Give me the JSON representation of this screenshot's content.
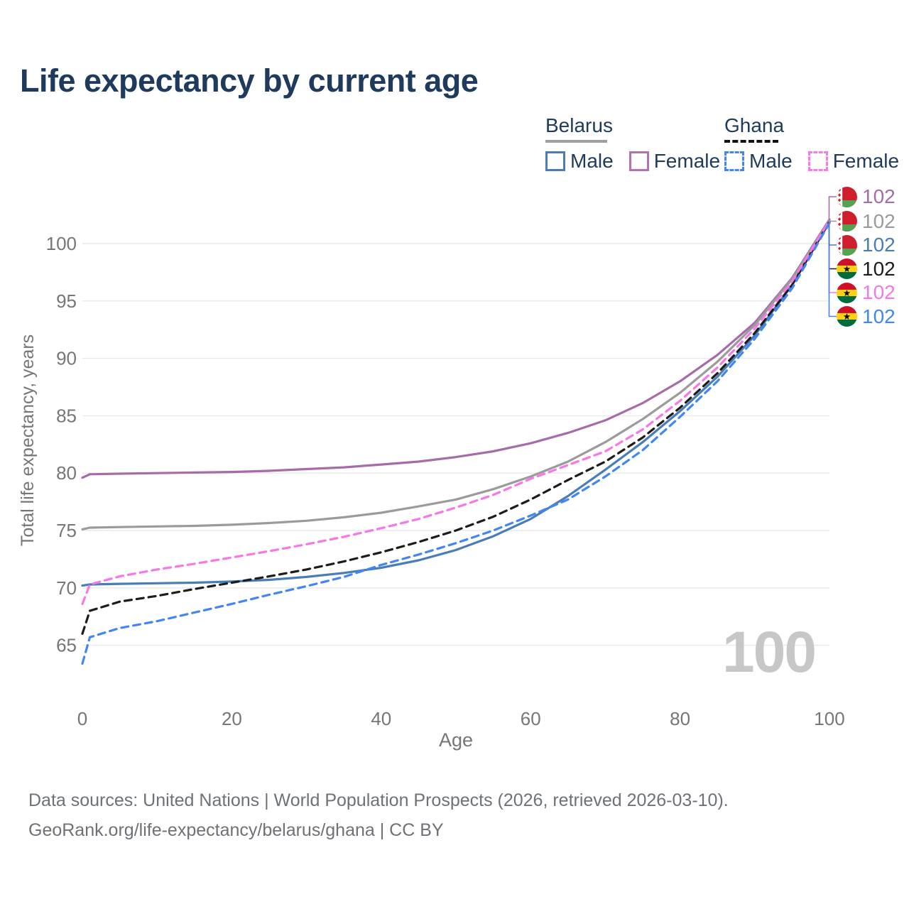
{
  "header": {
    "title": "Life expectancy by current age"
  },
  "legend": {
    "belarus": {
      "name": "Belarus",
      "male": "Male",
      "female": "Female"
    },
    "ghana": {
      "name": "Ghana",
      "male": "Male",
      "female": "Female"
    }
  },
  "axes": {
    "x_label": "Age",
    "y_label": "Total life expectancy, years"
  },
  "watermark": "100",
  "footer": {
    "line1": "Data sources: United Nations | World Population Prospects (2026, retrieved 2026-03-10).",
    "line2": "GeoRank.org/life-expectancy/belarus/ghana | CC BY"
  },
  "colors": {
    "title_text": "#1e3a5c",
    "axis_text": "#767676",
    "gridline": "#eaeaea",
    "watermark": "#c7c7c7",
    "belarus_female": "#a76ba9",
    "belarus_total": "#9b9b9b",
    "belarus_male": "#4a7db8",
    "ghana_total": "#1c1c1c",
    "ghana_female": "#f678e8",
    "ghana_male": "#4286f5"
  },
  "chart_data": {
    "type": "line",
    "title": "Life expectancy by current age",
    "xlabel": "Age",
    "ylabel": "Total life expectancy, years",
    "xlim": [
      0,
      100
    ],
    "ylim": [
      65,
      100
    ],
    "xticks": [
      0,
      20,
      40,
      60,
      80,
      100
    ],
    "yticks": [
      65,
      70,
      75,
      80,
      85,
      90,
      95,
      100
    ],
    "grid": "horizontal",
    "legend_position": "top-right",
    "watermark": "100",
    "x": [
      0,
      1,
      5,
      10,
      15,
      20,
      25,
      30,
      35,
      40,
      45,
      50,
      55,
      60,
      65,
      70,
      75,
      80,
      85,
      90,
      95,
      100
    ],
    "series": [
      {
        "name": "Belarus Female",
        "country": "belarus",
        "sex": "Female",
        "style": "solid",
        "color": "#a76ba9",
        "end_label": "102",
        "flag": "belarus-flag-icon",
        "values": [
          79.6,
          79.9,
          79.95,
          80.0,
          80.05,
          80.1,
          80.2,
          80.35,
          80.5,
          80.75,
          81.0,
          81.4,
          81.9,
          82.6,
          83.5,
          84.6,
          86.1,
          88.0,
          90.3,
          93.1,
          97.0,
          102.1
        ]
      },
      {
        "name": "Belarus",
        "country": "belarus",
        "sex": "Both",
        "style": "solid",
        "color": "#9b9b9b",
        "end_label": "102",
        "flag": "belarus-flag-icon",
        "values": [
          75.1,
          75.25,
          75.3,
          75.35,
          75.4,
          75.5,
          75.65,
          75.85,
          76.15,
          76.55,
          77.1,
          77.7,
          78.6,
          79.7,
          81.0,
          82.7,
          84.7,
          87.0,
          89.7,
          92.9,
          96.9,
          102.0
        ]
      },
      {
        "name": "Belarus Male",
        "country": "belarus",
        "sex": "Male",
        "style": "solid",
        "color": "#4a7db8",
        "end_label": "102",
        "flag": "belarus-flag-icon",
        "values": [
          70.2,
          70.3,
          70.35,
          70.4,
          70.45,
          70.55,
          70.7,
          70.95,
          71.3,
          71.75,
          72.4,
          73.3,
          74.5,
          76.0,
          78.0,
          80.3,
          82.7,
          85.4,
          88.4,
          92.0,
          96.4,
          101.9
        ]
      },
      {
        "name": "Ghana",
        "country": "ghana",
        "sex": "Both",
        "style": "dashed",
        "color": "#1c1c1c",
        "end_label": "102",
        "flag": "ghana-flag-icon",
        "values": [
          66.0,
          68.0,
          68.8,
          69.3,
          69.9,
          70.45,
          71.0,
          71.6,
          72.3,
          73.1,
          74.0,
          75.0,
          76.2,
          77.7,
          79.4,
          81.0,
          83.1,
          85.7,
          88.7,
          92.2,
          96.4,
          101.9
        ]
      },
      {
        "name": "Ghana Female",
        "country": "ghana",
        "sex": "Female",
        "style": "dashed",
        "color": "#f678e8",
        "end_label": "102",
        "flag": "ghana-flag-icon",
        "values": [
          68.6,
          70.3,
          71.0,
          71.6,
          72.1,
          72.65,
          73.2,
          73.8,
          74.45,
          75.2,
          76.0,
          77.0,
          78.1,
          79.5,
          80.7,
          81.9,
          83.8,
          86.3,
          89.2,
          92.6,
          96.7,
          102.0
        ]
      },
      {
        "name": "Ghana Male",
        "country": "ghana",
        "sex": "Male",
        "style": "dashed",
        "color": "#4286f5",
        "end_label": "102",
        "flag": "ghana-flag-icon",
        "values": [
          63.4,
          65.7,
          66.5,
          67.1,
          67.85,
          68.6,
          69.4,
          70.15,
          70.95,
          72.0,
          72.9,
          73.9,
          75.0,
          76.3,
          77.7,
          79.7,
          82.0,
          84.9,
          88.0,
          91.7,
          96.1,
          101.8
        ]
      }
    ]
  }
}
